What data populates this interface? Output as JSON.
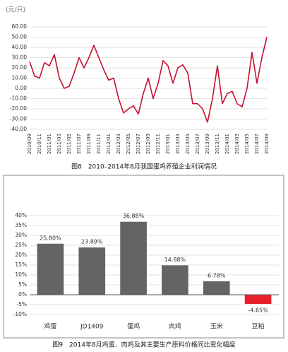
{
  "chart_data": [
    {
      "type": "line",
      "y_label": "(元/只)",
      "caption": "图8　2010–2014年8月我国蛋鸡养殖企业利润情况",
      "categories": [
        "2010/09",
        null,
        "2010/11",
        null,
        "2011/01",
        null,
        "2011/03",
        null,
        "2011/05",
        null,
        "2011/07",
        null,
        "2011/09",
        null,
        "2011/11",
        null,
        "2012/01",
        null,
        "2012/03",
        null,
        "2012/05",
        null,
        "2012/07",
        null,
        "2012/09",
        null,
        "2012/11",
        null,
        "2013/01",
        null,
        "2013/03",
        null,
        "2013/05",
        null,
        "2013/07",
        null,
        "2013/09",
        null,
        "2013/11",
        null,
        "2014/01",
        null,
        "2014/03",
        null,
        "2014/05",
        null,
        "2014/07",
        null,
        "2014/09"
      ],
      "series": [
        {
          "color": "#c8102e",
          "values": [
            26,
            12,
            10,
            25,
            22,
            33,
            10,
            0,
            2,
            15,
            30,
            20,
            30,
            42,
            30,
            18,
            8,
            10,
            -10,
            -24,
            -20,
            -17,
            -25,
            -5,
            10,
            -10,
            5,
            27,
            22,
            5,
            20,
            23,
            15,
            -15,
            -15,
            -20,
            -33,
            -10,
            22,
            -15,
            -5,
            -3,
            -15,
            -18,
            0,
            35,
            5,
            30,
            50
          ]
        }
      ],
      "ylim": [
        -40,
        60
      ],
      "yticks": [
        {
          "value": -40,
          "label": "-40.00"
        },
        {
          "value": -30,
          "label": "-30.00"
        },
        {
          "value": -20,
          "label": "-20.00"
        },
        {
          "value": -10,
          "label": "-10.00"
        },
        {
          "value": 0,
          "label": "0.00"
        },
        {
          "value": 10,
          "label": "10.00"
        },
        {
          "value": 20,
          "label": "20.00"
        },
        {
          "value": 30,
          "label": "30.00"
        },
        {
          "value": 40,
          "label": "40.00"
        },
        {
          "value": 50,
          "label": "50.00"
        },
        {
          "value": 60,
          "label": "60.00"
        }
      ],
      "grid": true
    },
    {
      "type": "bar",
      "caption": "图9　2014年8月鸡蛋、肉鸡及其主要生产原料价格同比变化幅度",
      "categories": [
        "鸡蛋",
        "JD1409",
        "蛋鸡",
        "肉鸡",
        "玉米",
        "豆粕"
      ],
      "values": [
        25.8,
        23.89,
        36.88,
        14.88,
        6.78,
        -4.65
      ],
      "value_labels": [
        "25.80%",
        "23.89%",
        "36.88%",
        "14.88%",
        "6.78%",
        "-4.65%"
      ],
      "colors": [
        "#646464",
        "#646464",
        "#646464",
        "#646464",
        "#646464",
        "#e8202a"
      ],
      "ylim": [
        -10,
        40
      ],
      "yticks": [
        {
          "value": -10,
          "label": "-10%"
        },
        {
          "value": -5,
          "label": "-5%"
        },
        {
          "value": 0,
          "label": "0%"
        },
        {
          "value": 5,
          "label": "5%"
        },
        {
          "value": 10,
          "label": "10%"
        },
        {
          "value": 15,
          "label": "15%"
        },
        {
          "value": 20,
          "label": "20%"
        },
        {
          "value": 25,
          "label": "25%"
        },
        {
          "value": 30,
          "label": "30%"
        },
        {
          "value": 35,
          "label": "35%"
        },
        {
          "value": 40,
          "label": "40%"
        }
      ],
      "grid": true
    }
  ]
}
